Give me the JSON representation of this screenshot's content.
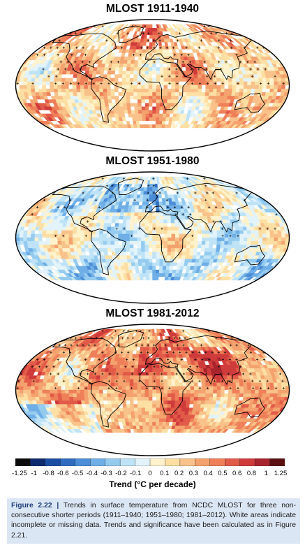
{
  "maps": [
    {
      "title": "MLOST 1911-1940",
      "bias": 0.22,
      "seed": 17,
      "stipple": 0.55,
      "missing": 0.12
    },
    {
      "title": "MLOST 1951-1980",
      "bias": -0.02,
      "seed": 51,
      "stipple": 0.42,
      "missing": 0.06
    },
    {
      "title": "MLOST 1981-2012",
      "bias": 0.33,
      "seed": 81,
      "stipple": 0.62,
      "missing": 0.05
    }
  ],
  "colorbar": {
    "label": "Trend (°C per decade)",
    "ticks": [
      "-1.25",
      "-1",
      "-0.8",
      "-0.6",
      "-0.5",
      "-0.4",
      "-0.3",
      "-0.2",
      "-0.1",
      "0",
      "0.1",
      "0.2",
      "0.3",
      "0.4",
      "0.5",
      "0.6",
      "0.8",
      "1",
      "1.25"
    ],
    "colors": [
      "#0b0b0b",
      "#0d2a6e",
      "#1b4ea3",
      "#2f6bbf",
      "#4b8dd6",
      "#6faee6",
      "#94cbef",
      "#bfe3f6",
      "#e2f3fa",
      "#fff2cc",
      "#fddfa3",
      "#f9c28a",
      "#f4a26e",
      "#ee7f58",
      "#e25a48",
      "#cf3a3a",
      "#a8242c",
      "#5a1010"
    ]
  },
  "caption": {
    "figure_label": "Figure 2.22",
    "separator": "|",
    "text": "Trends in surface temperature from NCDC MLOST for three non-consecutive shorter periods (1911–1940; 1951–1980; 1981–2012). White areas indicate incomplete or missing data. Trends and significance have been calculated as in Figure 2.21."
  }
}
